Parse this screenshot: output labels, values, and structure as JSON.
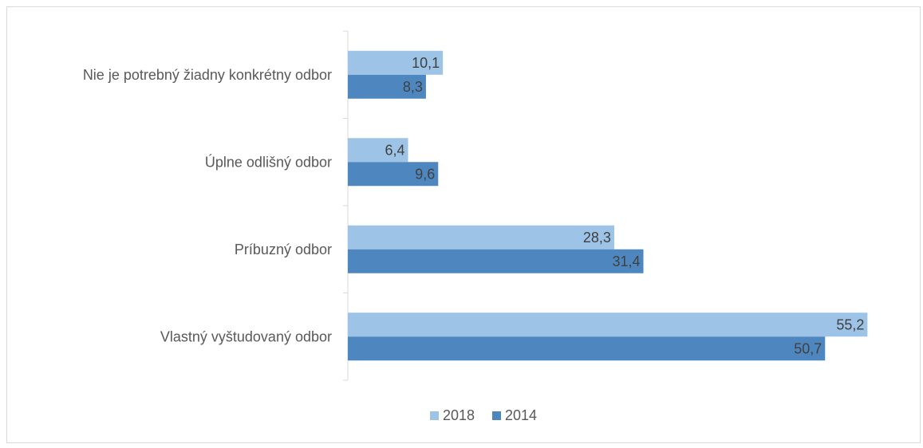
{
  "chart_data": {
    "type": "bar",
    "orientation": "horizontal",
    "title": "",
    "xlabel": "",
    "ylabel": "",
    "categories": [
      "Nie je potrebný žiadny konkrétny odbor",
      "Úplne odlišný odbor",
      "Príbuzný odbor",
      "Vlastný vyštudovaný odbor"
    ],
    "series": [
      {
        "name": "2018",
        "values": [
          10.1,
          6.4,
          28.3,
          55.2
        ],
        "labels": [
          "10,1",
          "6,4",
          "28,3",
          "55,2"
        ],
        "color": "#9dc3e6"
      },
      {
        "name": "2014",
        "values": [
          8.3,
          9.6,
          31.4,
          50.7
        ],
        "labels": [
          "8,3",
          "9,6",
          "31,4",
          "50,7"
        ],
        "color": "#4e87c0"
      }
    ],
    "xlim": [
      0,
      60
    ],
    "grid": false,
    "legend_position": "bottom"
  }
}
